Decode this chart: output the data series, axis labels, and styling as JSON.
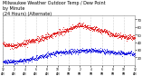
{
  "title": "Milwaukee Weather Outdoor Temp / Dew Point\nby Minute\n(24 Hours) (Alternate)",
  "title_fontsize": 3.5,
  "bg_color": "#ffffff",
  "plot_bg_color": "#ffffff",
  "grid_color": "#aaaaaa",
  "temp_color": "#dd0000",
  "dew_color": "#0000dd",
  "label_color": "#000000",
  "ylim": [
    10,
    75
  ],
  "yticks": [
    20,
    30,
    40,
    50,
    60,
    70
  ],
  "n_minutes": 1440,
  "seed": 42
}
